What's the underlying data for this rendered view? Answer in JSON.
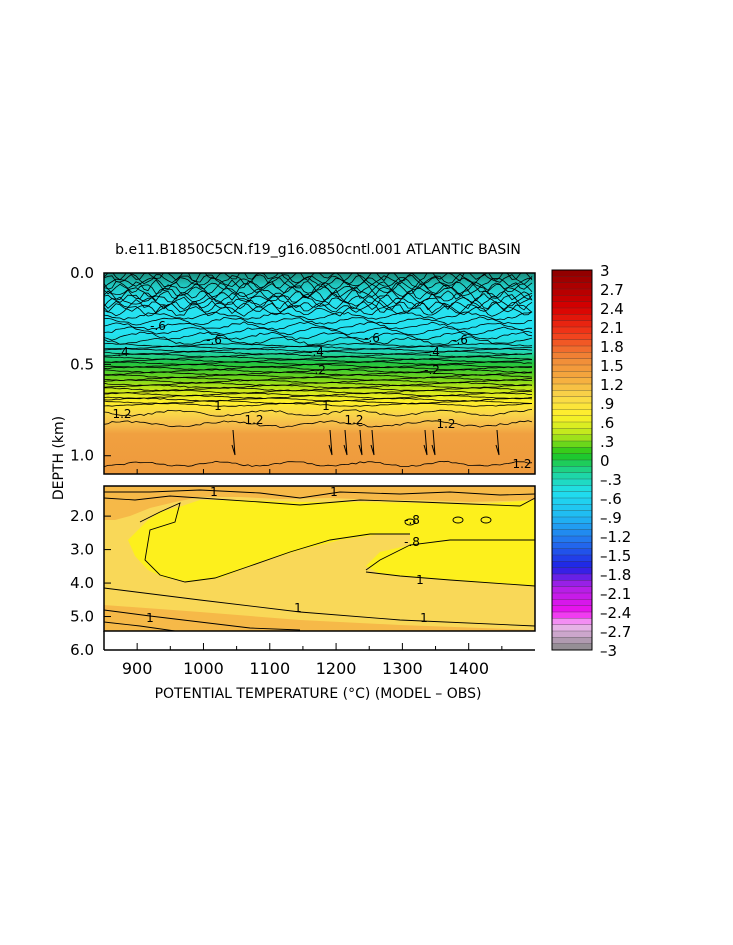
{
  "chart_data": {
    "type": "heatmap",
    "title": "b.e11.B1850C5CN.f19_g16.0850cntl.001 ATLANTIC BASIN",
    "xlabel": "POTENTIAL TEMPERATURE (°C) (MODEL – OBS)",
    "ylabel": "DEPTH (km)",
    "xlim": [
      850,
      1500
    ],
    "x_ticks": [
      900,
      1000,
      1100,
      1200,
      1300,
      1400
    ],
    "panels": [
      {
        "name": "upper",
        "ylim": [
          0.0,
          1.1
        ],
        "y_ticks": [
          0.0,
          0.5,
          1.0
        ],
        "y_tick_labels": [
          "0.0",
          "0.5",
          "1.0"
        ],
        "contour_labels": [
          ".4",
          "-.6",
          "-.6",
          "-.6",
          "-.6",
          "-.4",
          "-.4",
          "-.2",
          "-.2",
          "1",
          "1",
          "1.2",
          "1.2",
          "1.2",
          "1.2",
          "1.2"
        ]
      },
      {
        "name": "lower",
        "ylim": [
          1.1,
          6.0
        ],
        "y_ticks": [
          2.0,
          3.0,
          4.0,
          5.0,
          6.0
        ],
        "y_tick_labels": [
          "2.0",
          "3.0",
          "4.0",
          "5.0",
          "6.0"
        ],
        "contour_labels": [
          "1",
          "1",
          "-.8",
          "-.8",
          "1",
          "1",
          "1",
          "1"
        ]
      }
    ],
    "colorbar": {
      "labels": [
        "3",
        "2.7",
        "2.4",
        "2.1",
        "1.8",
        "1.5",
        "1.2",
        ".9",
        ".6",
        ".3",
        "0",
        "–.3",
        "–.6",
        "–.9",
        "–1.2",
        "–1.5",
        "–1.8",
        "–2.1",
        "–2.4",
        "–2.7",
        "–3"
      ],
      "values": [
        3,
        2.7,
        2.4,
        2.1,
        1.8,
        1.5,
        1.2,
        0.9,
        0.6,
        0.3,
        0,
        -0.3,
        -0.6,
        -0.9,
        -1.2,
        -1.5,
        -1.8,
        -2.1,
        -2.4,
        -2.7,
        -3
      ],
      "color_stops": [
        {
          "v": 3.0,
          "c": "#8c0000"
        },
        {
          "v": 2.4,
          "c": "#d80000"
        },
        {
          "v": 2.0,
          "c": "#f23a1a"
        },
        {
          "v": 1.6,
          "c": "#f08a38"
        },
        {
          "v": 1.3,
          "c": "#f5a93e"
        },
        {
          "v": 1.0,
          "c": "#f9d84a"
        },
        {
          "v": 0.7,
          "c": "#fff12a"
        },
        {
          "v": 0.4,
          "c": "#b8e81a"
        },
        {
          "v": 0.1,
          "c": "#1ec61a"
        },
        {
          "v": -0.2,
          "c": "#1ed49a"
        },
        {
          "v": -0.5,
          "c": "#20e0ee"
        },
        {
          "v": -0.9,
          "c": "#20b8f2"
        },
        {
          "v": -1.3,
          "c": "#2270ee"
        },
        {
          "v": -1.7,
          "c": "#2020e6"
        },
        {
          "v": -2.0,
          "c": "#b020e6"
        },
        {
          "v": -2.4,
          "c": "#ee12ee"
        },
        {
          "v": -2.6,
          "c": "#f4b8f4"
        },
        {
          "v": -3.0,
          "c": "#888888"
        }
      ]
    },
    "grid": false,
    "legend": "colorbar-right"
  }
}
